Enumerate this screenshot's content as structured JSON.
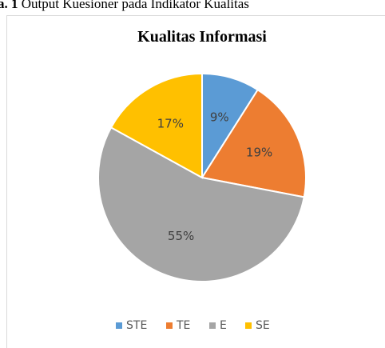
{
  "caption": {
    "number": "a. 1",
    "text": "Output Kuesioner pada Indikator Kualitas"
  },
  "chart_data": {
    "type": "pie",
    "title": "Kualitas Informasi",
    "categories": [
      "STE",
      "TE",
      "E",
      "SE"
    ],
    "values": [
      9,
      19,
      55,
      17
    ],
    "value_labels": [
      "9%",
      "19%",
      "55%",
      "17%"
    ],
    "colors": [
      "#5b9bd5",
      "#ed7d31",
      "#a5a5a5",
      "#ffc000"
    ],
    "legend": "bottom"
  }
}
